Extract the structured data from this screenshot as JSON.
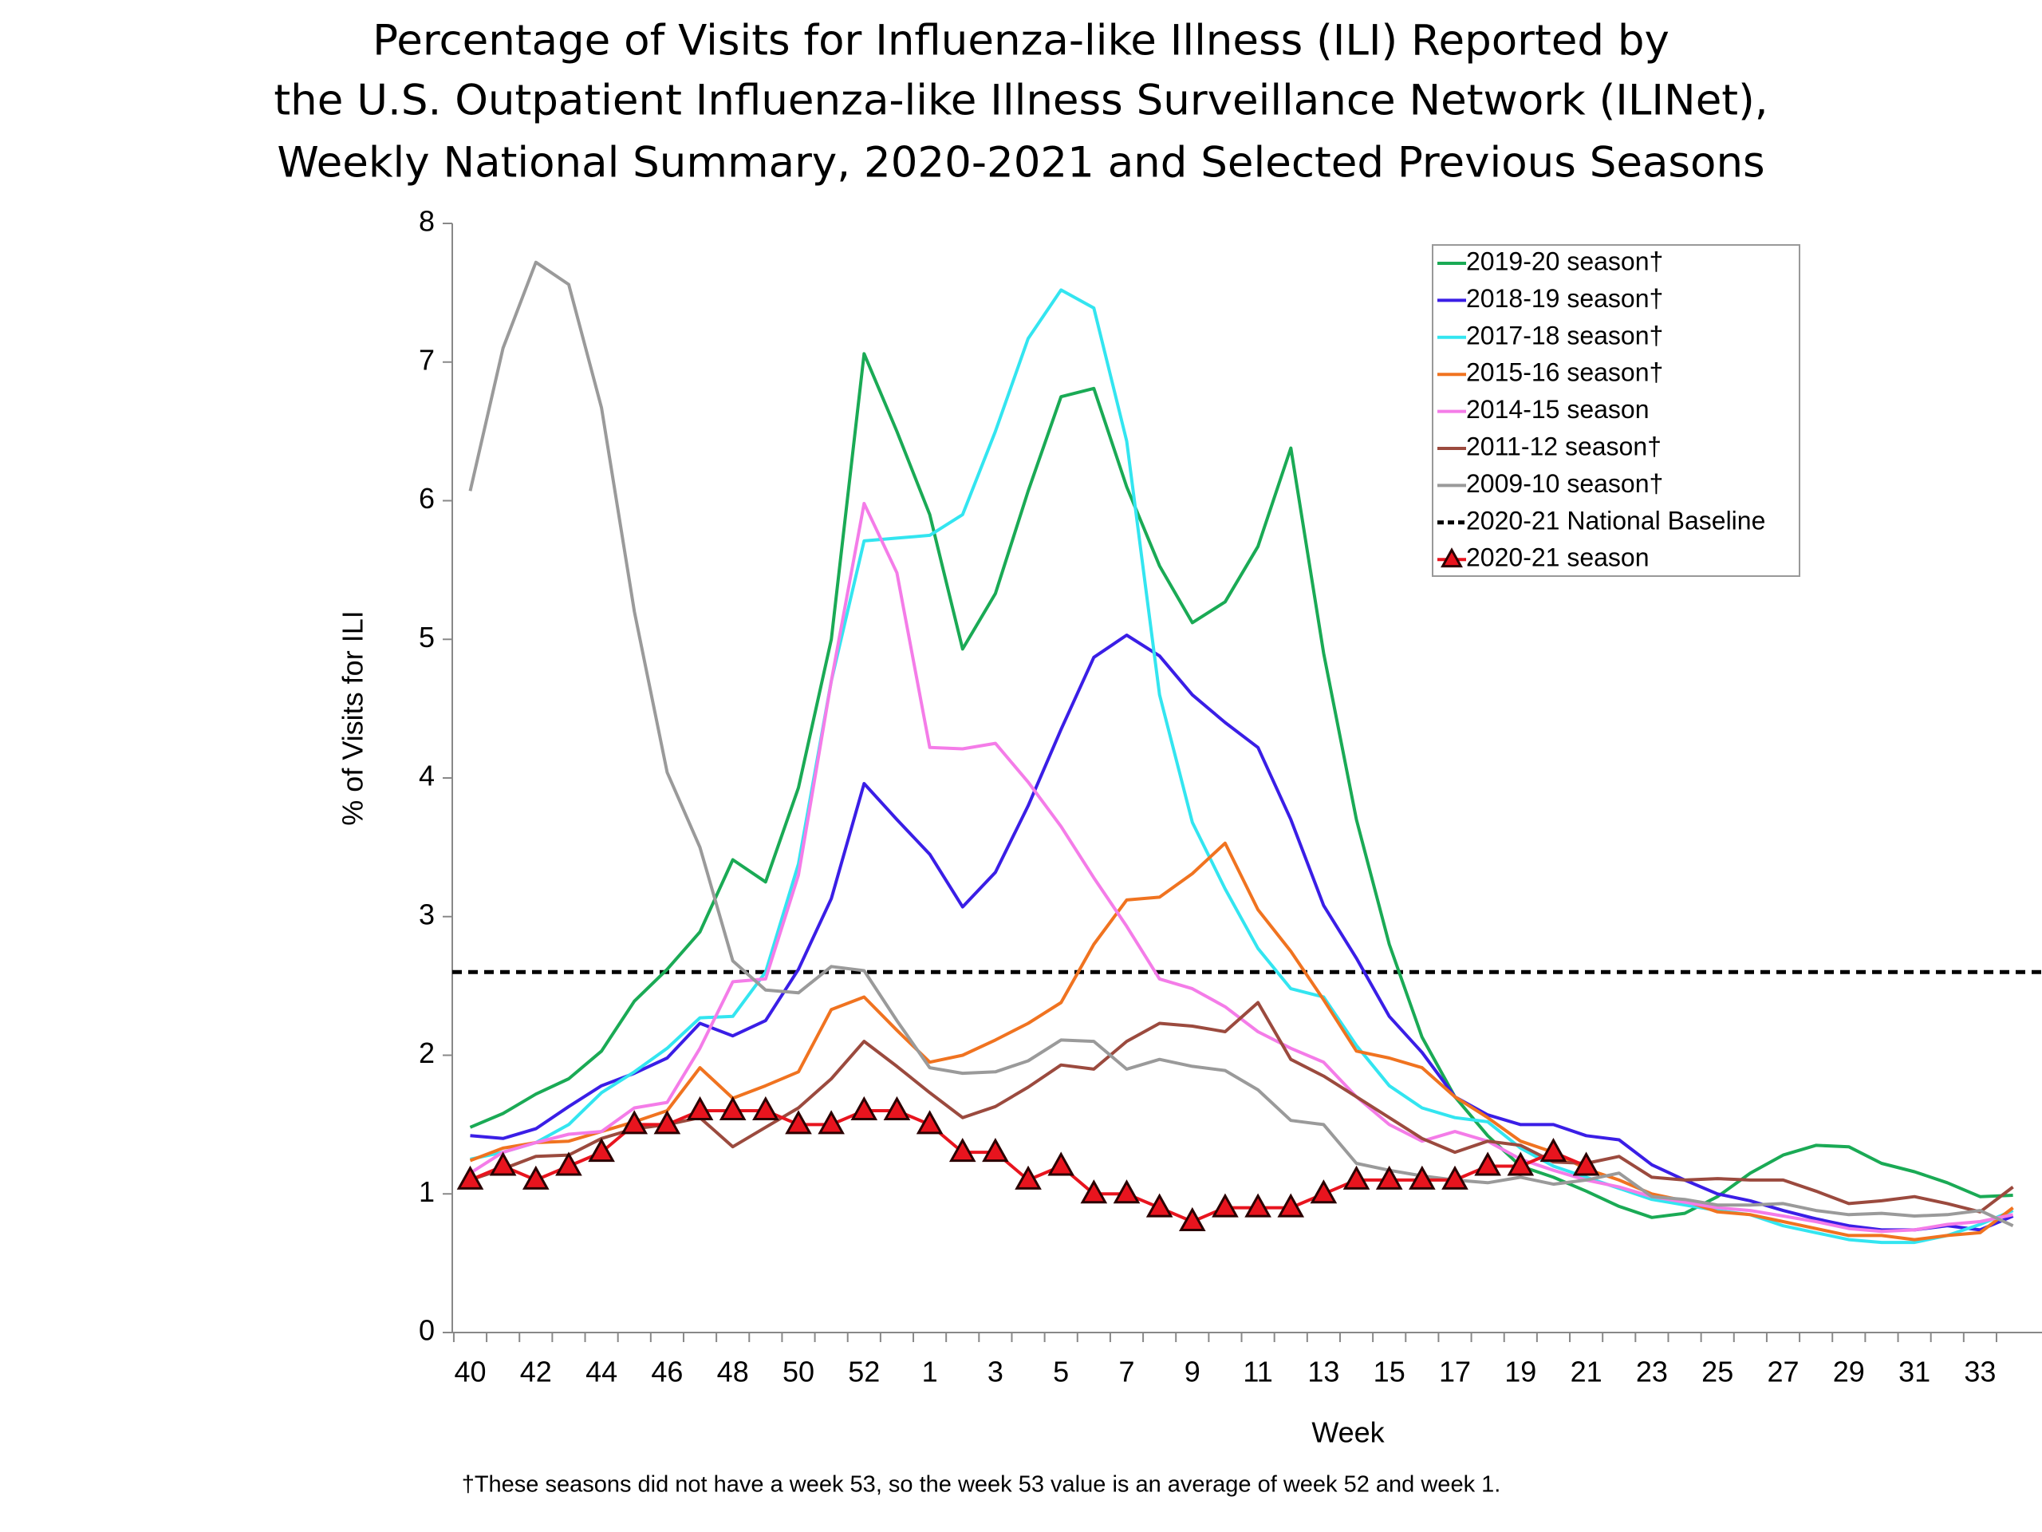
{
  "chart_data": {
    "type": "line",
    "title": [
      "Percentage of Visits for Influenza-like Illness (ILI) Reported by",
      "the U.S. Outpatient Influenza-like Illness Surveillance Network (ILINet),",
      "Weekly National Summary, 2020-2021 and Selected Previous Seasons"
    ],
    "x_label": "Week",
    "y_label": "% of Visits for ILI",
    "footnote": "†These seasons did not have a week 53, so the week 53 value is an average of week 52 and week 1.",
    "categories": [
      40,
      null,
      42,
      null,
      44,
      null,
      46,
      null,
      48,
      null,
      50,
      null,
      52,
      null,
      1,
      null,
      3,
      null,
      5,
      null,
      7,
      null,
      9,
      null,
      11,
      null,
      13,
      null,
      15,
      null,
      17,
      null,
      19,
      null,
      21,
      null,
      23,
      null,
      25,
      null,
      27,
      null,
      29,
      null,
      31,
      null,
      33,
      null
    ],
    "ylim": [
      0,
      8
    ],
    "yticks": [
      0,
      1,
      2,
      3,
      4,
      5,
      6,
      7,
      8
    ],
    "baseline": {
      "name": "2020-21 National Baseline",
      "value": 2.6,
      "color": "#000000"
    },
    "series": [
      {
        "name": "2019-20 season†",
        "color": "#1aaa55",
        "values": [
          1.48,
          1.58,
          1.72,
          1.83,
          2.03,
          2.39,
          2.62,
          2.89,
          3.41,
          3.25,
          3.93,
          5.0,
          7.06,
          6.5,
          5.9,
          4.93,
          5.33,
          6.07,
          6.75,
          6.81,
          6.1,
          5.53,
          5.12,
          5.27,
          5.67,
          6.38,
          4.9,
          3.7,
          2.8,
          2.13,
          1.7,
          1.42,
          1.2,
          1.12,
          1.02,
          0.91,
          0.83,
          0.86,
          0.98,
          1.15,
          1.28,
          1.35,
          1.34,
          1.22,
          1.16,
          1.08,
          0.98,
          0.99
        ]
      },
      {
        "name": "2018-19 season†",
        "color": "#3a1ee6",
        "values": [
          1.42,
          1.4,
          1.47,
          1.63,
          1.78,
          1.87,
          1.98,
          2.23,
          2.14,
          2.25,
          2.62,
          3.13,
          3.96,
          3.7,
          3.45,
          3.07,
          3.32,
          3.8,
          4.35,
          4.87,
          5.03,
          4.88,
          4.6,
          4.4,
          4.22,
          3.7,
          3.08,
          2.7,
          2.28,
          2.02,
          1.7,
          1.57,
          1.5,
          1.5,
          1.42,
          1.39,
          1.21,
          1.1,
          1.0,
          0.95,
          0.88,
          0.82,
          0.77,
          0.74,
          0.74,
          0.77,
          0.74,
          0.84
        ]
      },
      {
        "name": "2017-18 season†",
        "color": "#33e5f0",
        "values": [
          1.25,
          1.3,
          1.37,
          1.5,
          1.73,
          1.88,
          2.05,
          2.27,
          2.28,
          2.6,
          3.38,
          4.7,
          5.71,
          5.73,
          5.75,
          5.9,
          6.5,
          7.17,
          7.52,
          7.39,
          6.43,
          4.6,
          3.68,
          3.2,
          2.77,
          2.48,
          2.42,
          2.07,
          1.78,
          1.62,
          1.55,
          1.52,
          1.33,
          1.2,
          1.12,
          1.04,
          0.96,
          0.92,
          0.88,
          0.85,
          0.77,
          0.72,
          0.67,
          0.65,
          0.65,
          0.7,
          0.78,
          0.88
        ]
      },
      {
        "name": "2015-16 season†",
        "color": "#f07320",
        "values": [
          1.24,
          1.33,
          1.37,
          1.38,
          1.45,
          1.52,
          1.6,
          1.91,
          1.69,
          1.78,
          1.88,
          2.33,
          2.42,
          2.18,
          1.95,
          2.0,
          2.11,
          2.23,
          2.38,
          2.8,
          3.12,
          3.14,
          3.31,
          3.53,
          3.05,
          2.75,
          2.4,
          2.03,
          1.98,
          1.91,
          1.7,
          1.55,
          1.38,
          1.3,
          1.18,
          1.1,
          1.0,
          0.95,
          0.87,
          0.85,
          0.8,
          0.75,
          0.7,
          0.7,
          0.67,
          0.7,
          0.72,
          0.9
        ]
      },
      {
        "name": "2014-15 season",
        "color": "#f47ce8",
        "values": [
          1.15,
          1.3,
          1.37,
          1.43,
          1.45,
          1.62,
          1.66,
          2.05,
          2.53,
          2.55,
          3.3,
          4.7,
          5.98,
          5.48,
          4.22,
          4.21,
          4.25,
          3.97,
          3.65,
          3.28,
          2.93,
          2.55,
          2.48,
          2.35,
          2.17,
          2.05,
          1.95,
          1.7,
          1.5,
          1.38,
          1.45,
          1.38,
          1.25,
          1.17,
          1.1,
          1.05,
          0.98,
          0.94,
          0.9,
          0.88,
          0.84,
          0.8,
          0.75,
          0.73,
          0.74,
          0.78,
          0.8,
          0.85
        ]
      },
      {
        "name": "2011-12 season†",
        "color": "#9b4a3e",
        "values": [
          1.1,
          1.18,
          1.27,
          1.28,
          1.4,
          1.47,
          1.5,
          1.55,
          1.34,
          1.48,
          1.62,
          1.83,
          2.1,
          1.92,
          1.73,
          1.55,
          1.63,
          1.77,
          1.93,
          1.9,
          2.1,
          2.23,
          2.21,
          2.17,
          2.38,
          1.97,
          1.85,
          1.7,
          1.55,
          1.4,
          1.3,
          1.38,
          1.35,
          1.23,
          1.22,
          1.27,
          1.12,
          1.1,
          1.11,
          1.1,
          1.1,
          1.02,
          0.93,
          0.95,
          0.98,
          0.93,
          0.87,
          1.05
        ]
      },
      {
        "name": "2009-10 season†",
        "color": "#9a9a9a",
        "values": [
          6.07,
          7.1,
          7.72,
          7.56,
          6.67,
          5.2,
          4.04,
          3.5,
          2.68,
          2.47,
          2.45,
          2.64,
          2.61,
          2.25,
          1.91,
          1.87,
          1.88,
          1.96,
          2.11,
          2.1,
          1.9,
          1.97,
          1.92,
          1.89,
          1.75,
          1.53,
          1.5,
          1.22,
          1.17,
          1.13,
          1.1,
          1.08,
          1.12,
          1.07,
          1.1,
          1.15,
          0.98,
          0.96,
          0.92,
          0.92,
          0.93,
          0.88,
          0.85,
          0.86,
          0.84,
          0.85,
          0.88,
          0.77
        ]
      },
      {
        "name": "2020-21 season",
        "color": "#e8141e",
        "marker": "triangle",
        "values": [
          1.1,
          1.2,
          1.1,
          1.2,
          1.3,
          1.5,
          1.5,
          1.6,
          1.6,
          1.6,
          1.5,
          1.5,
          1.6,
          1.6,
          1.5,
          1.3,
          1.3,
          1.1,
          1.2,
          1.0,
          1.0,
          0.9,
          0.8,
          0.9,
          0.9,
          0.9,
          1.0,
          1.1,
          1.1,
          1.1,
          1.1,
          1.2,
          1.2,
          1.3,
          1.2,
          null,
          null,
          null,
          null,
          null,
          null,
          null,
          null,
          null,
          null,
          null,
          null,
          null
        ]
      }
    ]
  }
}
